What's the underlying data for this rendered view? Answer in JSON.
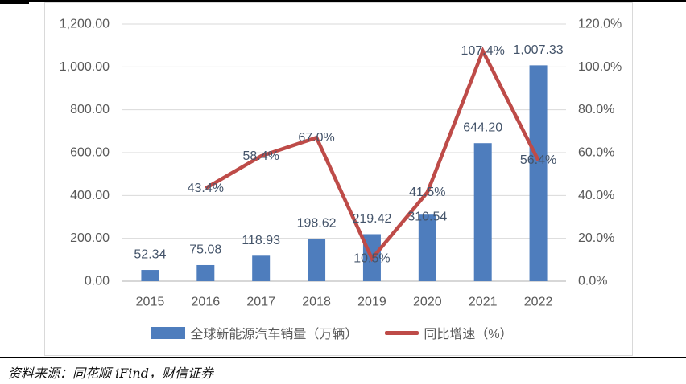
{
  "source_note": "资料来源：同花顺 iFind，财信证券",
  "chart_data": {
    "type": "combo-bar-line",
    "title": "",
    "categories": [
      "2015",
      "2016",
      "2017",
      "2018",
      "2019",
      "2020",
      "2021",
      "2022"
    ],
    "series": [
      {
        "name": "全球新能源汽车销量（万辆）",
        "type": "bar",
        "axis": "left",
        "color": "#4E7DBD",
        "values": [
          52.34,
          75.08,
          118.93,
          198.62,
          219.42,
          310.54,
          644.2,
          1007.33
        ],
        "labels": [
          "52.34",
          "75.08",
          "118.93",
          "198.62",
          "219.42",
          "310.54",
          "644.20",
          "1,007.33"
        ]
      },
      {
        "name": "同比增速（%）",
        "type": "line",
        "axis": "right",
        "color": "#BE4B48",
        "values": [
          null,
          43.4,
          58.4,
          67.0,
          10.5,
          41.5,
          107.4,
          56.4
        ],
        "labels": [
          null,
          "43.4%",
          "58.4%",
          "67.0%",
          "10.5%",
          "41.5%",
          "107.4%",
          "56.4%"
        ]
      }
    ],
    "left_axis": {
      "min": 0,
      "max": 1200,
      "ticks": [
        "1,200.00",
        "1,000.00",
        "800.00",
        "600.00",
        "400.00",
        "200.00",
        "0.00"
      ]
    },
    "right_axis": {
      "min": 0,
      "max": 120,
      "ticks": [
        "120.0%",
        "100.0%",
        "80.0%",
        "60.0%",
        "40.0%",
        "20.0%",
        "0.0%"
      ]
    },
    "grid": true,
    "legend_position": "bottom",
    "grid_color": "#D9D9D9",
    "axis_line_color": "#BFBFBF"
  }
}
